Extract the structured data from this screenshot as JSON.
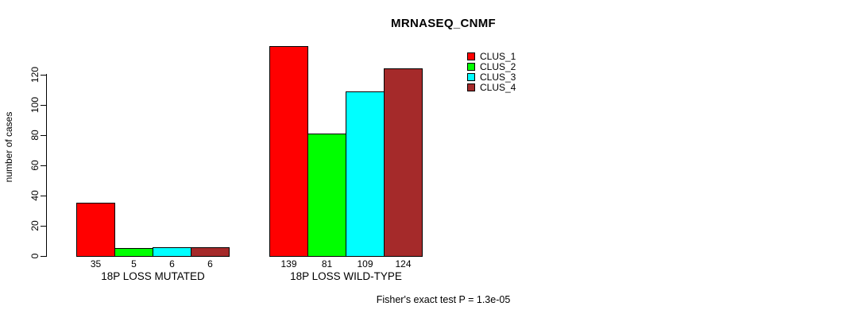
{
  "title": "MRNASEQ_CNMF",
  "ylabel": "number of cases",
  "footer": "Fisher's exact test P = 1.3e-05",
  "chart_data": {
    "type": "bar",
    "grouped": true,
    "title": "MRNASEQ_CNMF",
    "xlabel": "",
    "ylabel": "number of cases",
    "categories": [
      "18P LOSS MUTATED",
      "18P LOSS WILD-TYPE"
    ],
    "series": [
      {
        "name": "CLUS_1",
        "color": "#ff0000",
        "values": [
          35,
          139
        ]
      },
      {
        "name": "CLUS_2",
        "color": "#00ff00",
        "values": [
          5,
          81
        ]
      },
      {
        "name": "CLUS_3",
        "color": "#00ffff",
        "values": [
          6,
          109
        ]
      },
      {
        "name": "CLUS_4",
        "color": "#a52a2a",
        "values": [
          6,
          124
        ]
      }
    ],
    "bar_value_labels": [
      [
        35,
        5,
        6,
        6
      ],
      [
        139,
        81,
        109,
        124
      ]
    ],
    "yticks": [
      0,
      20,
      40,
      60,
      80,
      100,
      120
    ],
    "ylim": [
      0,
      120
    ],
    "grid": false,
    "legend_position": "top-right",
    "annotation": "Fisher's exact test P = 1.3e-05"
  }
}
